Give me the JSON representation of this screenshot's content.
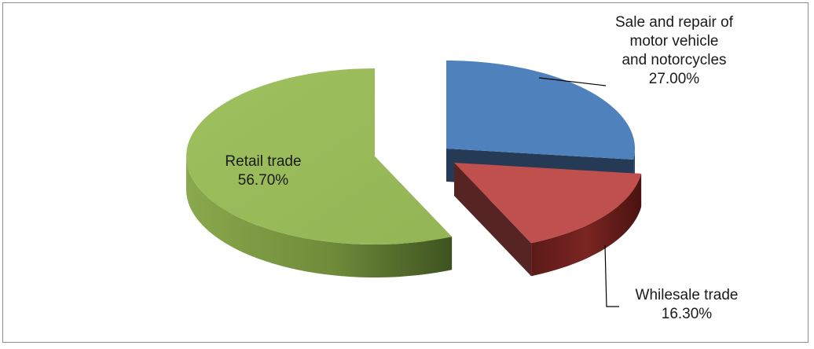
{
  "chart_data": {
    "type": "pie",
    "style": "3d-exploded",
    "slices": [
      {
        "label_lines": [
          "Sale and repair of",
          "motor vehicle",
          "and notorcycles"
        ],
        "value": 27.0,
        "value_label": "27.00%",
        "color": "#4f81bd"
      },
      {
        "label_lines": [
          "Whilesale trade"
        ],
        "value": 16.3,
        "value_label": "16.30%",
        "color": "#c0504d"
      },
      {
        "label_lines": [
          "Retail trade"
        ],
        "value": 56.7,
        "value_label": "56.70%",
        "color": "#9bbb59"
      }
    ],
    "legend": "none"
  }
}
